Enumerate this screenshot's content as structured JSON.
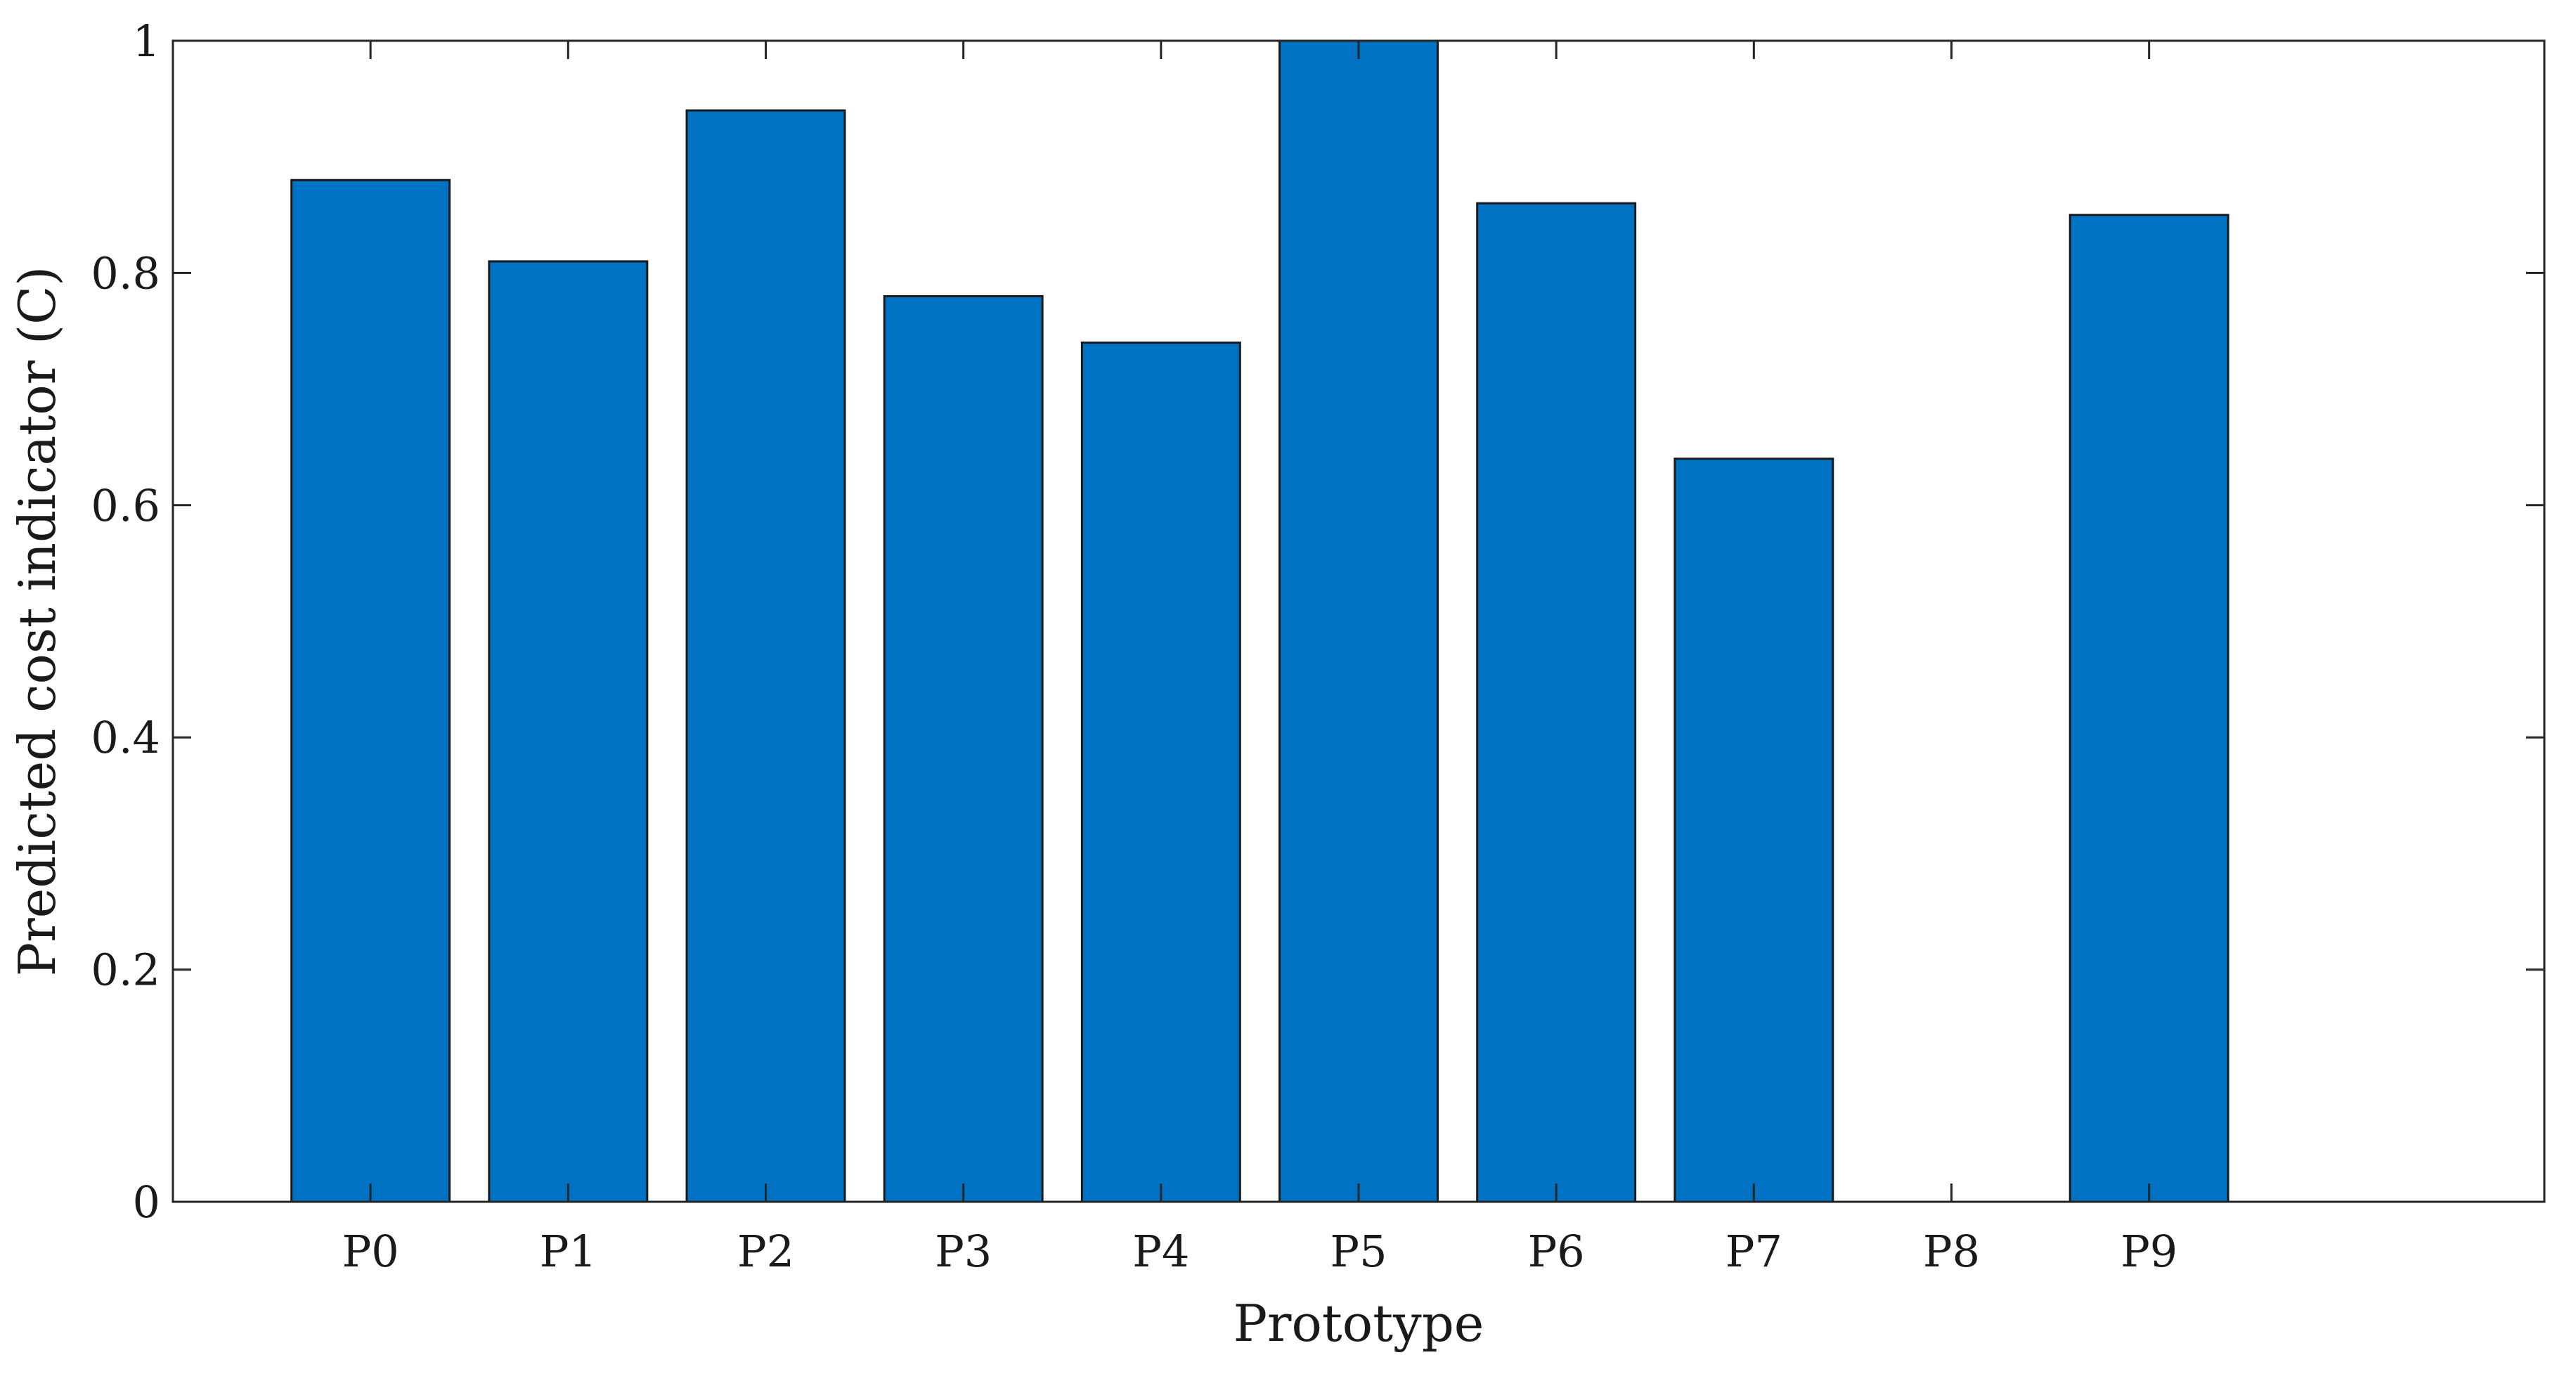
{
  "chart_data": {
    "type": "bar",
    "title": "",
    "xlabel": "Prototype",
    "ylabel": "Predicted cost indicator (C)",
    "categories": [
      "P0",
      "P1",
      "P2",
      "P3",
      "P4",
      "P5",
      "P6",
      "P7",
      "P8",
      "P9"
    ],
    "values": [
      0.88,
      0.81,
      0.94,
      0.78,
      0.74,
      1.0,
      0.86,
      0.64,
      0,
      0.85
    ],
    "ylim": [
      0,
      1
    ],
    "yticks": [
      0,
      0.2,
      0.4,
      0.6,
      0.8,
      1
    ],
    "ytick_labels": [
      "0",
      "0.2",
      "0.4",
      "0.6",
      "0.8",
      "1"
    ],
    "xlim": [
      -1,
      11
    ],
    "grid": false,
    "legend": "none",
    "colors": {
      "bar": "#0072c3",
      "edge": "#1a1a1a"
    }
  }
}
